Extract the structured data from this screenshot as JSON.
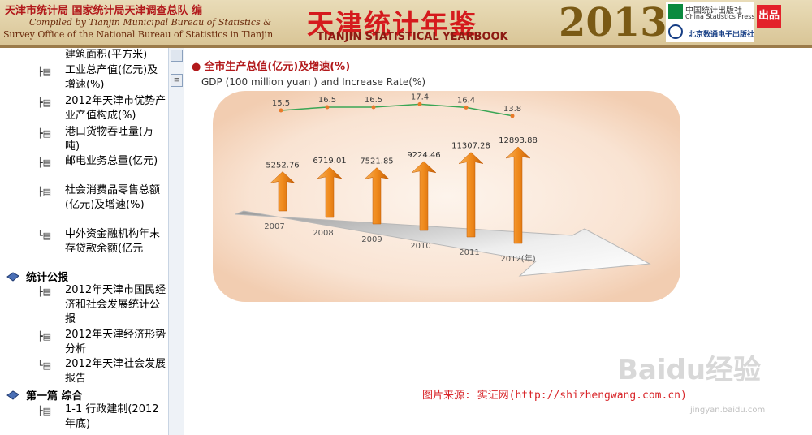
{
  "banner": {
    "publisher_cn": "天津市统计局 国家统计局天津调查总队 编",
    "publisher_en_1": "Compiled by Tianjin Municipal Bureau of Statistics &",
    "publisher_en_2": "Survey Office of the National Bureau of Statistics in Tianjin",
    "yearbook_cn": "天津统计年鉴",
    "yearbook_en": "TIANJIN STATISTICAL YEARBOOK",
    "year": "2013",
    "press_1": "中国统计出版社",
    "press_1_en": "China Statistics Press",
    "press_2": "北京数通电子出版社",
    "badge": "出品"
  },
  "sidebar": {
    "items_top": [
      {
        "label": "建筑面积(平方米)"
      },
      {
        "label": "工业总产值(亿元)及增速(%)"
      },
      {
        "label": "2012年天津市优势产业产值构成(%)"
      },
      {
        "label": "港口货物吞吐量(万吨)"
      },
      {
        "label": "邮电业务总量(亿元)"
      },
      {
        "label": "社会消费品零售总额(亿元)及增速(%)"
      },
      {
        "label": "中外资金融机构年末存贷款余额(亿元"
      }
    ],
    "section_1": "统计公报",
    "items_section_1": [
      {
        "label": "2012年天津市国民经济和社会发展统计公报"
      },
      {
        "label": "2012年天津经济形势分析"
      },
      {
        "label": "2012年天津社会发展报告"
      }
    ],
    "section_2": "第一篇 综合",
    "items_section_2": [
      {
        "label": "1-1 行政建制(2012年底)"
      }
    ]
  },
  "chart": {
    "title_cn": "全市生产总值(亿元)及增速(%)",
    "title_en": "GDP (100 million yuan ) and Increase Rate(%)"
  },
  "chart_data": {
    "type": "bar",
    "categories": [
      "2007",
      "2008",
      "2009",
      "2010",
      "2011",
      "2012(年)"
    ],
    "series": [
      {
        "values": [
          5252.76,
          6719.01,
          7521.85,
          9224.46,
          11307.28,
          12893.88
        ]
      },
      {
        "values": [
          15.5,
          16.5,
          16.5,
          17.4,
          16.4,
          13.8
        ]
      }
    ],
    "colors": {
      "bars": "#f08a1c",
      "line": "#3aa655",
      "background": "#f7dcc6"
    }
  },
  "source": "图片来源: 实证网(http://shizhengwang.com.cn)",
  "watermark": "Baidu经验",
  "watermark_url": "jingyan.baidu.com"
}
